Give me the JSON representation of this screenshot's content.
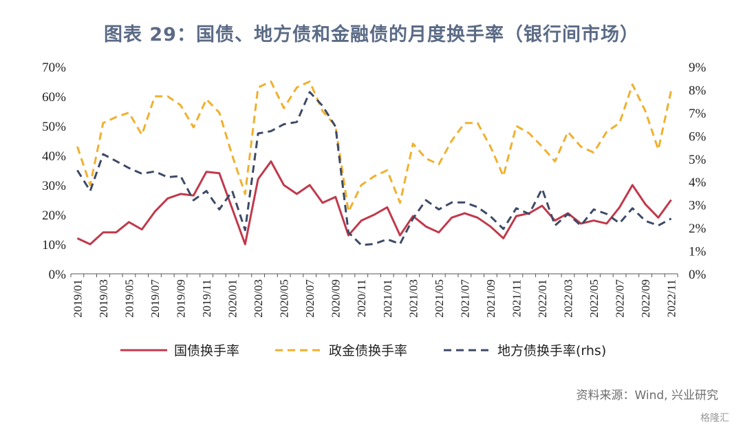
{
  "title": "图表 29：国债、地方债和金融债的月度换手率（银行间市场）",
  "source": "资料来源：Wind, 兴业研究",
  "watermark": "格隆汇",
  "colors": {
    "guozhai": "#c0394b",
    "zhengjin": "#f0b02d",
    "difang": "#3d4a66"
  },
  "chart_data": {
    "type": "line",
    "x": [
      "2019/01",
      "2019/02",
      "2019/03",
      "2019/04",
      "2019/05",
      "2019/06",
      "2019/07",
      "2019/08",
      "2019/09",
      "2019/10",
      "2019/11",
      "2019/12",
      "2020/01",
      "2020/02",
      "2020/03",
      "2020/04",
      "2020/05",
      "2020/06",
      "2020/07",
      "2020/08",
      "2020/09",
      "2020/10",
      "2020/11",
      "2020/12",
      "2021/01",
      "2021/02",
      "2021/03",
      "2021/04",
      "2021/05",
      "2021/06",
      "2021/07",
      "2021/08",
      "2021/09",
      "2021/10",
      "2021/11",
      "2021/12",
      "2022/01",
      "2022/02",
      "2022/03",
      "2022/04",
      "2022/05",
      "2022/06",
      "2022/07",
      "2022/08",
      "2022/09",
      "2022/10",
      "2022/11"
    ],
    "xticks": [
      "2019/01",
      "2019/03",
      "2019/05",
      "2019/07",
      "2019/09",
      "2019/11",
      "2020/01",
      "2020/03",
      "2020/05",
      "2020/07",
      "2020/09",
      "2020/11",
      "2021/01",
      "2021/03",
      "2021/05",
      "2021/07",
      "2021/09",
      "2021/11",
      "2022/01",
      "2022/03",
      "2022/05",
      "2022/07",
      "2022/09",
      "2022/11"
    ],
    "y_left": {
      "ticks": [
        "0%",
        "10%",
        "20%",
        "30%",
        "40%",
        "50%",
        "60%",
        "70%"
      ],
      "ylim": [
        0,
        70
      ]
    },
    "y_right": {
      "ticks": [
        "0%",
        "1%",
        "2%",
        "3%",
        "4%",
        "5%",
        "6%",
        "7%",
        "8%",
        "9%"
      ],
      "ylim": [
        0,
        9
      ]
    },
    "series": [
      {
        "name": "国债换手率",
        "axis": "left",
        "style": "solid",
        "color_key": "guozhai",
        "values": [
          12,
          10,
          14,
          14,
          17.5,
          15,
          21,
          25.5,
          27,
          26.5,
          34.5,
          34,
          22,
          10,
          32,
          38,
          30,
          27,
          30,
          24,
          26,
          13,
          18,
          20,
          22.5,
          13,
          19.5,
          16,
          14,
          19,
          20.5,
          19,
          16,
          12,
          19.5,
          20.5,
          23,
          18,
          20.5,
          17,
          18,
          17,
          22.5,
          30,
          23.5,
          19,
          25
        ]
      },
      {
        "name": "政金债换手率",
        "axis": "left",
        "style": "dashed",
        "color_key": "zhengjin",
        "values": [
          43,
          30,
          51,
          53,
          54.5,
          47,
          60,
          60,
          57,
          49.5,
          59,
          54.5,
          40,
          27,
          63,
          65,
          56,
          63,
          65,
          55,
          50,
          21,
          30,
          33,
          35,
          24,
          44,
          39,
          37,
          45,
          51,
          51,
          43,
          33,
          50,
          47.5,
          43,
          38,
          48,
          43,
          41,
          48,
          51,
          64,
          55,
          42,
          62
        ]
      },
      {
        "name": "地方债换手率(rhs)",
        "axis": "right",
        "style": "dashed",
        "color_key": "difang",
        "values": [
          4.5,
          3.6,
          5.2,
          4.9,
          4.6,
          4.35,
          4.45,
          4.2,
          4.25,
          3.2,
          3.6,
          2.8,
          3.6,
          1.9,
          6.1,
          6.2,
          6.5,
          6.6,
          7.9,
          7.3,
          6.4,
          1.8,
          1.25,
          1.3,
          1.5,
          1.3,
          2.4,
          3.2,
          2.8,
          3.1,
          3.1,
          2.9,
          2.5,
          1.95,
          2.85,
          2.6,
          3.7,
          2.1,
          2.6,
          2.1,
          2.8,
          2.6,
          2.2,
          2.85,
          2.3,
          2.1,
          2.4
        ]
      }
    ],
    "legend_position": "bottom"
  }
}
